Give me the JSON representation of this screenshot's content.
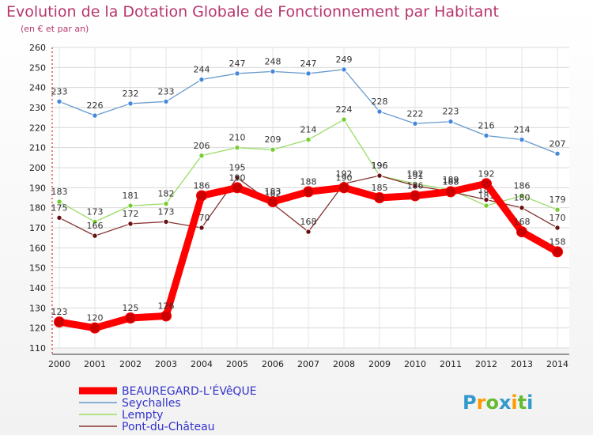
{
  "chart_data": {
    "type": "line",
    "title": "Evolution de la Dotation Globale de Fonctionnement par Habitant",
    "subtitle": "(en € et par an)",
    "x": [
      "2000",
      "2001",
      "2002",
      "2003",
      "2004",
      "2005",
      "2006",
      "2007",
      "2008",
      "2009",
      "2010",
      "2011",
      "2012",
      "2013",
      "2014"
    ],
    "yticks": [
      110,
      120,
      130,
      140,
      150,
      160,
      170,
      180,
      190,
      200,
      210,
      220,
      230,
      240,
      250,
      260
    ],
    "ylim": [
      110,
      260
    ],
    "grid": true,
    "legend_position": "bottom-left",
    "series": [
      {
        "name": "Seychalles",
        "color": "#6699cc",
        "marker": "#4488dd",
        "values": [
          233,
          226,
          232,
          233,
          244,
          247,
          248,
          247,
          249,
          228,
          222,
          223,
          216,
          214,
          207
        ],
        "labels": [
          "233",
          "226",
          "232",
          "233",
          "244",
          "247",
          "248",
          "247",
          "249",
          "228",
          "222",
          "223",
          "216",
          "214",
          "207"
        ]
      },
      {
        "name": "Lempty",
        "color": "#99dd66",
        "marker": "#77cc33",
        "values": [
          183,
          173,
          181,
          182,
          206,
          210,
          209,
          214,
          224,
          196,
          192,
          189,
          181,
          186,
          179
        ],
        "labels": [
          "183",
          "173",
          "181",
          "182",
          "206",
          "210",
          "209",
          "214",
          "224",
          "196",
          "192",
          "189",
          "181",
          "186",
          "179"
        ]
      },
      {
        "name": "Pont-du-Château",
        "color": "#883333",
        "marker": "#661111",
        "values": [
          175,
          166,
          172,
          173,
          170,
          195,
          182,
          168,
          192,
          196,
          191,
          188,
          184,
          180,
          170
        ],
        "labels": [
          "175",
          "166",
          "172",
          "173",
          "170",
          "195",
          "182",
          "168",
          "192",
          "196",
          "191",
          "188",
          "184",
          "180",
          "170"
        ]
      },
      {
        "name": "BEAUREGARD-L'ÉVêQUE",
        "color": "#ff0000",
        "marker": "#dd0000",
        "thick": true,
        "values": [
          123,
          120,
          125,
          126,
          186,
          190,
          183,
          188,
          190,
          185,
          186,
          188,
          192,
          168,
          158
        ],
        "labels": [
          "123",
          "120",
          "125",
          "126",
          "186",
          "190",
          "183",
          "188",
          "190",
          "185",
          "186",
          "188",
          "192",
          "168",
          "158"
        ]
      }
    ],
    "legend": [
      "BEAUREGARD-L'ÉVêQUE",
      "Seychalles",
      "Lempty",
      "Pont-du-Château"
    ]
  },
  "brand": {
    "logo_text": "Proxiti",
    "letters": [
      "P",
      "r",
      "o",
      "x",
      "i",
      "t",
      "i"
    ],
    "colors": [
      "#3399cc",
      "#ff9900",
      "#66bb33",
      "#3399cc",
      "#ff9900",
      "#66bb33",
      "#3399cc"
    ]
  }
}
